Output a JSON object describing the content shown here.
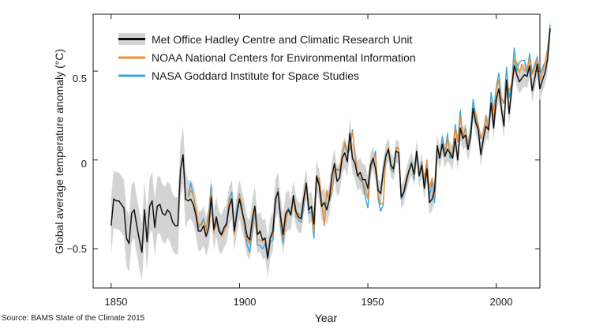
{
  "chart_data": {
    "type": "line",
    "title": "",
    "xlabel": "Year",
    "ylabel": "Global average temperature anomaly (°C)",
    "xlim": [
      1843,
      2017
    ],
    "ylim": [
      -0.72,
      0.82
    ],
    "xticks": [
      1850,
      1900,
      1950,
      2000
    ],
    "xtick_labels": [
      "1850",
      "1900",
      "1950",
      "2000"
    ],
    "yticks": [
      -0.5,
      0,
      0.5
    ],
    "ytick_labels": [
      "−0.5",
      "0",
      "0.5"
    ],
    "legend_position": "top-left",
    "series": [
      {
        "name": "Met Office Hadley Centre and Climatic Research Unit",
        "color": "#111111",
        "band_color": "#d3d3d3",
        "start": 1850,
        "values": [
          -0.37,
          -0.22,
          -0.23,
          -0.23,
          -0.25,
          -0.27,
          -0.44,
          -0.47,
          -0.3,
          -0.28,
          -0.37,
          -0.45,
          -0.52,
          -0.28,
          -0.46,
          -0.26,
          -0.23,
          -0.38,
          -0.26,
          -0.25,
          -0.3,
          -0.31,
          -0.28,
          -0.3,
          -0.35,
          -0.37,
          -0.37,
          -0.06,
          0.03,
          -0.22,
          -0.23,
          -0.22,
          -0.25,
          -0.31,
          -0.4,
          -0.4,
          -0.37,
          -0.43,
          -0.38,
          -0.21,
          -0.39,
          -0.32,
          -0.4,
          -0.42,
          -0.38,
          -0.36,
          -0.26,
          -0.22,
          -0.4,
          -0.3,
          -0.22,
          -0.29,
          -0.35,
          -0.43,
          -0.45,
          -0.33,
          -0.26,
          -0.42,
          -0.4,
          -0.45,
          -0.44,
          -0.55,
          -0.44,
          -0.4,
          -0.22,
          -0.18,
          -0.32,
          -0.42,
          -0.3,
          -0.28,
          -0.31,
          -0.2,
          -0.29,
          -0.32,
          -0.33,
          -0.22,
          -0.13,
          -0.28,
          -0.26,
          -0.36,
          -0.09,
          -0.14,
          -0.26,
          -0.24,
          -0.28,
          -0.22,
          -0.09,
          -0.02,
          -0.12,
          -0.1,
          0.01,
          0.04,
          -0.01,
          0.15,
          0.01,
          -0.02,
          -0.09,
          -0.07,
          -0.11,
          -0.11,
          -0.16,
          -0.03,
          0.01,
          -0.05,
          -0.17,
          -0.19,
          -0.06,
          0.02,
          0.06,
          -0.03,
          -0.05,
          0.05,
          0.04,
          -0.21,
          -0.18,
          -0.11,
          -0.06,
          -0.02,
          -0.08,
          0.05,
          -0.09,
          -0.03,
          -0.16,
          -0.05,
          -0.24,
          -0.22,
          -0.17,
          0.08,
          0.01,
          0.09,
          0.02,
          0.06,
          0.04,
          0.01,
          0.12,
          0.0,
          0.18,
          0.12,
          0.14,
          0.06,
          0.13,
          0.29,
          0.21,
          0.17,
          0.03,
          0.12,
          0.19,
          0.17,
          0.32,
          0.18,
          0.34,
          0.4,
          0.29,
          0.19,
          0.45,
          0.26,
          0.4,
          0.53,
          0.48,
          0.44,
          0.46,
          0.48,
          0.47,
          0.53,
          0.39,
          0.46,
          0.54,
          0.4,
          0.45,
          0.49,
          0.57,
          0.74
        ]
      },
      {
        "name": "NOAA National Centers for Environmental Information",
        "color": "#f08c2e",
        "start": 1880,
        "values": [
          -0.21,
          -0.17,
          -0.2,
          -0.28,
          -0.36,
          -0.37,
          -0.34,
          -0.4,
          -0.32,
          -0.18,
          -0.41,
          -0.35,
          -0.4,
          -0.43,
          -0.4,
          -0.37,
          -0.23,
          -0.21,
          -0.42,
          -0.3,
          -0.2,
          -0.27,
          -0.38,
          -0.45,
          -0.47,
          -0.36,
          -0.28,
          -0.45,
          -0.45,
          -0.46,
          -0.44,
          -0.55,
          -0.44,
          -0.42,
          -0.23,
          -0.17,
          -0.35,
          -0.44,
          -0.35,
          -0.28,
          -0.3,
          -0.22,
          -0.32,
          -0.3,
          -0.32,
          -0.24,
          -0.14,
          -0.27,
          -0.27,
          -0.4,
          -0.12,
          -0.1,
          -0.22,
          -0.36,
          -0.17,
          -0.22,
          -0.18,
          -0.06,
          -0.06,
          -0.05,
          0.03,
          0.1,
          0.05,
          0.07,
          0.16,
          0.04,
          -0.08,
          -0.1,
          -0.12,
          -0.16,
          -0.22,
          -0.04,
          0.0,
          0.03,
          -0.2,
          -0.25,
          -0.24,
          0.03,
          0.07,
          -0.04,
          -0.06,
          0.06,
          0.07,
          -0.21,
          -0.18,
          -0.13,
          -0.06,
          -0.02,
          -0.09,
          0.04,
          -0.07,
          -0.02,
          -0.1,
          0.0,
          -0.16,
          -0.1,
          -0.2,
          0.04,
          0.04,
          0.07,
          0.03,
          0.12,
          0.03,
          0.04,
          0.18,
          0.1,
          0.24,
          0.14,
          0.17,
          0.1,
          0.14,
          0.28,
          0.26,
          0.2,
          0.13,
          0.15,
          0.24,
          0.16,
          0.33,
          0.24,
          0.4,
          0.45,
          0.32,
          0.32,
          0.45,
          0.39,
          0.43,
          0.56,
          0.55,
          0.49,
          0.54,
          0.5,
          0.51,
          0.57,
          0.48,
          0.52,
          0.57,
          0.45,
          0.49,
          0.55,
          0.62,
          0.74
        ]
      },
      {
        "name": "NASA Goddard Institute for Space Studies",
        "color": "#3aa6d8",
        "start": 1880,
        "values": [
          -0.2,
          -0.13,
          -0.2,
          -0.28,
          -0.38,
          -0.36,
          -0.33,
          -0.39,
          -0.3,
          -0.14,
          -0.4,
          -0.32,
          -0.38,
          -0.42,
          -0.38,
          -0.35,
          -0.22,
          -0.18,
          -0.4,
          -0.27,
          -0.19,
          -0.26,
          -0.39,
          -0.48,
          -0.52,
          -0.39,
          -0.29,
          -0.48,
          -0.48,
          -0.5,
          -0.47,
          -0.56,
          -0.46,
          -0.45,
          -0.25,
          -0.16,
          -0.37,
          -0.47,
          -0.35,
          -0.27,
          -0.3,
          -0.21,
          -0.31,
          -0.34,
          -0.35,
          -0.27,
          -0.13,
          -0.3,
          -0.29,
          -0.44,
          -0.13,
          -0.11,
          -0.23,
          -0.37,
          -0.18,
          -0.23,
          -0.19,
          -0.07,
          -0.05,
          -0.06,
          0.02,
          0.09,
          0.04,
          0.06,
          0.17,
          0.03,
          -0.09,
          -0.11,
          -0.13,
          -0.21,
          -0.27,
          -0.06,
          -0.01,
          0.05,
          -0.22,
          -0.29,
          -0.25,
          0.03,
          0.06,
          -0.05,
          -0.07,
          0.07,
          0.06,
          -0.22,
          -0.19,
          -0.14,
          -0.06,
          -0.01,
          -0.11,
          0.03,
          -0.08,
          -0.01,
          -0.12,
          -0.01,
          -0.21,
          -0.12,
          -0.24,
          0.02,
          0.01,
          0.13,
          0.03,
          0.15,
          0.01,
          0.05,
          0.2,
          0.11,
          0.28,
          0.12,
          0.18,
          0.09,
          0.17,
          0.34,
          0.25,
          0.18,
          0.12,
          0.16,
          0.25,
          0.16,
          0.38,
          0.28,
          0.41,
          0.49,
          0.35,
          0.32,
          0.52,
          0.35,
          0.43,
          0.63,
          0.5,
          0.55,
          0.56,
          0.56,
          0.49,
          0.6,
          0.49,
          0.54,
          0.58,
          0.48,
          0.52,
          0.55,
          0.63,
          0.76
        ]
      }
    ]
  },
  "source_text": "Source: BAMS State of the Climate 2015"
}
